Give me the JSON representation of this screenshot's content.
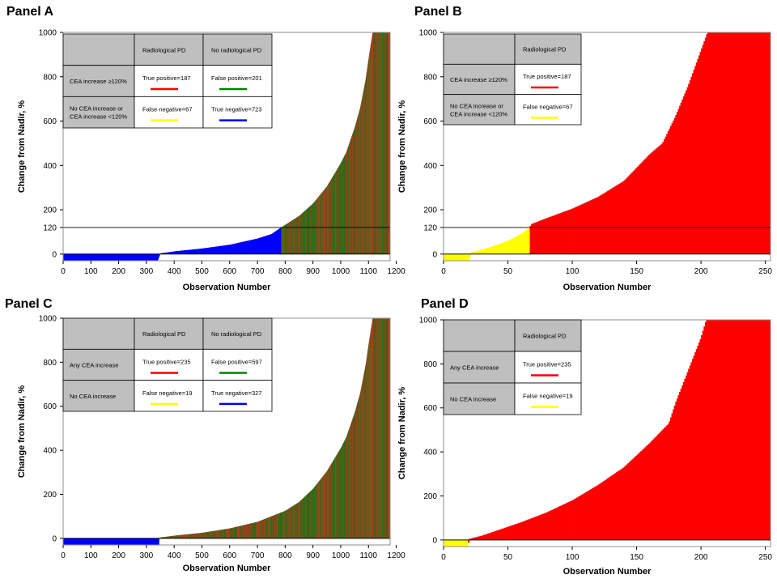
{
  "panels": [
    {
      "id": "A",
      "label": "Panel A",
      "table": {
        "col_headers": [
          "Radiological PD",
          "No radiological PD"
        ],
        "rows": [
          {
            "header_lines": [
              "CEA increase ≥120%"
            ],
            "cells": [
              {
                "text": "True positive=187",
                "color": "#ff0000"
              },
              {
                "text": "False positive=201",
                "color": "#008000"
              }
            ]
          },
          {
            "header_lines": [
              "No CEA increase or",
              "CEA increase <120%"
            ],
            "cells": [
              {
                "text": "False negative=67",
                "color": "#ffff00"
              },
              {
                "text": "True negative=723",
                "color": "#0000ff"
              }
            ]
          }
        ]
      }
    },
    {
      "id": "B",
      "label": "Panel B",
      "table": {
        "col_headers": [
          "Radiological PD"
        ],
        "rows": [
          {
            "header_lines": [
              "CEA increase ≥120%"
            ],
            "cells": [
              {
                "text": "True positive=187",
                "color": "#ff0000"
              }
            ]
          },
          {
            "header_lines": [
              "No CEA increase or",
              "CEA increase <120%"
            ],
            "cells": [
              {
                "text": "False negative=67",
                "color": "#ffff00"
              }
            ]
          }
        ]
      }
    },
    {
      "id": "C",
      "label": "Panel C",
      "table": {
        "col_headers": [
          "Radiological PD",
          "No radiological PD"
        ],
        "rows": [
          {
            "header_lines": [
              "Any CEA increase"
            ],
            "cells": [
              {
                "text": "True positive=235",
                "color": "#ff0000"
              },
              {
                "text": "False positive=597",
                "color": "#008000"
              }
            ]
          },
          {
            "header_lines": [
              "No CEA increase"
            ],
            "cells": [
              {
                "text": "False negative=19",
                "color": "#ffff00"
              },
              {
                "text": "True negative=327",
                "color": "#0000ff"
              }
            ]
          }
        ]
      }
    },
    {
      "id": "D",
      "label": "Panel D",
      "table": {
        "col_headers": [
          "Radiological PD"
        ],
        "rows": [
          {
            "header_lines": [
              "Any CEA increase"
            ],
            "cells": [
              {
                "text": "True positive=235",
                "color": "#ff0000"
              }
            ]
          },
          {
            "header_lines": [
              "No CEA increase"
            ],
            "cells": [
              {
                "text": "False negative=19",
                "color": "#ffff00"
              }
            ]
          }
        ]
      }
    }
  ],
  "chart_data": [
    {
      "panel": "A",
      "type": "bar",
      "xlabel": "Observation Number",
      "ylabel": "Change from Nadir, %",
      "xlim": [
        0,
        1178
      ],
      "ylim": [
        -30,
        1000
      ],
      "xticks": [
        0,
        100,
        200,
        300,
        400,
        500,
        600,
        700,
        800,
        900,
        1000,
        1100,
        1200
      ],
      "yticks": [
        0,
        120,
        200,
        400,
        600,
        800,
        1000
      ],
      "reference_line": 120,
      "total_observations": 1178,
      "curve": {
        "x": [
          0,
          340,
          350,
          400,
          500,
          600,
          700,
          750,
          785,
          800,
          850,
          900,
          950,
          1000,
          1020,
          1050,
          1070,
          1090,
          1100,
          1110,
          1115,
          1120,
          1178
        ],
        "y": [
          -30,
          -30,
          3,
          12,
          25,
          42,
          70,
          90,
          120,
          132,
          172,
          228,
          305,
          410,
          460,
          570,
          660,
          790,
          880,
          960,
          1000,
          1000,
          1000
        ]
      },
      "segments": [
        {
          "from": 0,
          "to": 345,
          "category": "true_negative",
          "color": "#0000ff"
        },
        {
          "from": 345,
          "to": 785,
          "category": "true_negative",
          "color": "#0000ff"
        },
        {
          "from": 785,
          "to": 1178,
          "category": "mixed_true_false_positive",
          "colors": [
            "#2f6a17",
            "#b83a1f"
          ]
        }
      ]
    },
    {
      "panel": "B",
      "type": "bar",
      "xlabel": "Observation Number",
      "ylabel": "Change from Nadir, %",
      "xlim": [
        0,
        254
      ],
      "ylim": [
        -30,
        1000
      ],
      "xticks": [
        0,
        50,
        100,
        150,
        200,
        250
      ],
      "yticks": [
        0,
        120,
        200,
        400,
        600,
        800,
        1000
      ],
      "reference_line": 120,
      "total_observations": 254,
      "curve": {
        "x": [
          0,
          20,
          21,
          30,
          40,
          50,
          60,
          67,
          68,
          80,
          100,
          120,
          140,
          160,
          170,
          180,
          190,
          200,
          205,
          254
        ],
        "y": [
          -30,
          -30,
          6,
          20,
          38,
          60,
          90,
          120,
          135,
          162,
          205,
          258,
          330,
          450,
          500,
          620,
          760,
          920,
          1000,
          1000
        ]
      },
      "segments": [
        {
          "from": 0,
          "to": 67,
          "category": "false_negative",
          "color": "#ffff00"
        },
        {
          "from": 67,
          "to": 254,
          "category": "true_positive",
          "color": "#ff0000"
        }
      ]
    },
    {
      "panel": "C",
      "type": "bar",
      "xlabel": "Observation Number",
      "ylabel": "Change from Nadir, %",
      "xlim": [
        0,
        1178
      ],
      "ylim": [
        -30,
        1000
      ],
      "xticks": [
        0,
        100,
        200,
        300,
        400,
        500,
        600,
        700,
        800,
        900,
        1000,
        1100,
        1200
      ],
      "yticks": [
        0,
        200,
        400,
        600,
        800,
        1000
      ],
      "reference_line": null,
      "total_observations": 1178,
      "curve": {
        "x": [
          0,
          345,
          346,
          400,
          500,
          600,
          700,
          800,
          850,
          900,
          950,
          1000,
          1020,
          1050,
          1070,
          1090,
          1100,
          1110,
          1115,
          1178
        ],
        "y": [
          -30,
          -30,
          3,
          12,
          25,
          45,
          75,
          125,
          165,
          225,
          305,
          410,
          460,
          570,
          660,
          790,
          880,
          960,
          1000,
          1000
        ]
      },
      "segments": [
        {
          "from": 0,
          "to": 345,
          "category": "true_negative",
          "color": "#0000ff"
        },
        {
          "from": 345,
          "to": 1178,
          "category": "mixed_true_false_positive",
          "colors": [
            "#2f6a17",
            "#b83a1f"
          ]
        }
      ]
    },
    {
      "panel": "D",
      "type": "bar",
      "xlabel": "Observation Number",
      "ylabel": "Change from Nadir, %",
      "xlim": [
        0,
        254
      ],
      "ylim": [
        -30,
        1000
      ],
      "xticks": [
        0,
        50,
        100,
        150,
        200,
        250
      ],
      "yticks": [
        0,
        200,
        400,
        600,
        800,
        1000
      ],
      "reference_line": null,
      "total_observations": 254,
      "curve": {
        "x": [
          0,
          19,
          20,
          30,
          40,
          60,
          80,
          100,
          120,
          140,
          160,
          170,
          175,
          180,
          190,
          200,
          204,
          254
        ],
        "y": [
          -30,
          -30,
          5,
          20,
          40,
          80,
          125,
          180,
          250,
          330,
          440,
          500,
          530,
          620,
          770,
          920,
          1000,
          1000
        ]
      },
      "segments": [
        {
          "from": 0,
          "to": 19,
          "category": "false_negative",
          "color": "#ffff00"
        },
        {
          "from": 19,
          "to": 254,
          "category": "true_positive",
          "color": "#ff0000"
        }
      ]
    }
  ]
}
